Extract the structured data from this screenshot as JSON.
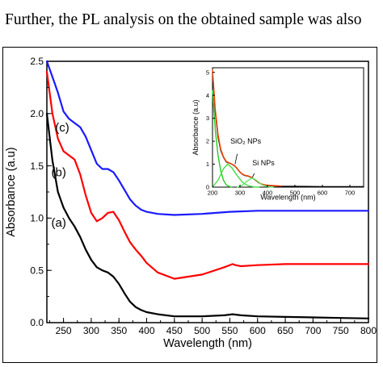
{
  "header": {
    "caption": "Further, the PL analysis on the obtained sample was also"
  },
  "chart_data": [
    {
      "type": "line",
      "xlabel": "Wavelength (nm)",
      "ylabel": "Absorbance (a.u)",
      "xlim": [
        220,
        800
      ],
      "ylim": [
        0.0,
        2.5
      ],
      "xticks": [
        250,
        300,
        350,
        400,
        450,
        500,
        550,
        600,
        650,
        700,
        750,
        800
      ],
      "yticks": [
        0.0,
        0.5,
        1.0,
        1.5,
        2.0,
        2.5
      ],
      "ytick_labels": [
        "0.0",
        "0.5",
        "1.0",
        "1.5",
        "2.0",
        "2.5"
      ],
      "grid": false,
      "series": [
        {
          "name": "(a)",
          "color": "#000000",
          "x": [
            220,
            230,
            240,
            250,
            260,
            270,
            280,
            290,
            300,
            310,
            320,
            330,
            340,
            350,
            360,
            370,
            380,
            390,
            400,
            420,
            450,
            500,
            540,
            555,
            570,
            600,
            650,
            700,
            750,
            800
          ],
          "y": [
            2.0,
            1.55,
            1.25,
            1.1,
            1.0,
            0.92,
            0.82,
            0.7,
            0.6,
            0.53,
            0.5,
            0.48,
            0.44,
            0.37,
            0.28,
            0.2,
            0.15,
            0.12,
            0.1,
            0.08,
            0.06,
            0.06,
            0.07,
            0.08,
            0.07,
            0.06,
            0.055,
            0.05,
            0.045,
            0.04
          ]
        },
        {
          "name": "(b)",
          "color": "#ff0000",
          "x": [
            220,
            230,
            240,
            250,
            260,
            270,
            280,
            290,
            300,
            310,
            320,
            330,
            340,
            350,
            360,
            370,
            380,
            390,
            400,
            420,
            450,
            500,
            540,
            555,
            560,
            570,
            600,
            650,
            700,
            750,
            800
          ],
          "y": [
            2.4,
            2.0,
            1.76,
            1.64,
            1.6,
            1.56,
            1.42,
            1.22,
            1.05,
            0.97,
            1.0,
            1.05,
            1.06,
            0.98,
            0.87,
            0.77,
            0.7,
            0.64,
            0.57,
            0.48,
            0.42,
            0.46,
            0.53,
            0.56,
            0.55,
            0.54,
            0.55,
            0.56,
            0.56,
            0.56,
            0.56
          ]
        },
        {
          "name": "(c)",
          "color": "#1a1aff",
          "x": [
            220,
            230,
            240,
            250,
            260,
            270,
            280,
            290,
            300,
            310,
            320,
            330,
            340,
            350,
            360,
            370,
            380,
            390,
            400,
            420,
            450,
            500,
            550,
            600,
            650,
            700,
            750,
            800
          ],
          "y": [
            2.5,
            2.35,
            2.2,
            2.02,
            1.95,
            1.91,
            1.87,
            1.78,
            1.65,
            1.52,
            1.47,
            1.47,
            1.44,
            1.36,
            1.27,
            1.18,
            1.12,
            1.08,
            1.06,
            1.04,
            1.03,
            1.04,
            1.06,
            1.07,
            1.07,
            1.07,
            1.07,
            1.07
          ]
        }
      ],
      "labels": {
        "a": "(a)",
        "b": "(b)",
        "c": "(c)"
      }
    },
    {
      "type": "line",
      "xlabel": "Wavelength (nm)",
      "ylabel": "Absorbance (a.u)",
      "xlim": [
        200,
        750
      ],
      "ylim": [
        0,
        5.2
      ],
      "xticks": [
        200,
        300,
        400,
        500,
        600,
        700
      ],
      "yticks": [
        0,
        1,
        2,
        3,
        4,
        5
      ],
      "grid": false,
      "annotations": {
        "sio2": "SiO₂ NPs",
        "si": "Si NPs"
      },
      "series": [
        {
          "color": "#000000",
          "x": [
            200,
            210,
            220,
            230,
            240,
            250,
            260,
            270,
            280,
            290,
            300,
            310,
            320,
            330,
            340,
            350,
            360,
            370,
            380,
            400,
            450,
            500,
            600,
            750
          ],
          "y": [
            5.0,
            3.3,
            2.2,
            1.6,
            1.3,
            1.1,
            1.05,
            1.0,
            0.93,
            0.8,
            0.65,
            0.55,
            0.5,
            0.48,
            0.43,
            0.36,
            0.27,
            0.18,
            0.12,
            0.07,
            0.04,
            0.03,
            0.02,
            0.02
          ]
        },
        {
          "color": "#ff4400",
          "x": [
            200,
            210,
            220,
            230,
            240,
            250,
            260,
            270,
            280,
            290,
            300,
            310,
            320,
            330,
            340,
            350,
            360,
            370,
            380,
            400,
            450
          ],
          "y": [
            5.1,
            3.4,
            2.3,
            1.65,
            1.32,
            1.12,
            1.06,
            1.01,
            0.94,
            0.81,
            0.66,
            0.56,
            0.51,
            0.49,
            0.44,
            0.37,
            0.28,
            0.19,
            0.13,
            0.08,
            0.05
          ]
        },
        {
          "color": "#22cc22",
          "x": [
            200,
            210,
            220,
            230,
            240,
            250,
            260,
            270
          ],
          "y": [
            4.2,
            2.5,
            1.4,
            0.7,
            0.3,
            0.1,
            0.03,
            0.0
          ]
        },
        {
          "color": "#44dd44",
          "x": [
            200,
            220,
            240,
            255,
            270,
            290,
            310,
            330,
            350,
            370
          ],
          "y": [
            0.0,
            0.3,
            0.8,
            1.0,
            0.85,
            0.5,
            0.2,
            0.06,
            0.01,
            0.0
          ]
        },
        {
          "color": "#66ee66",
          "x": [
            290,
            310,
            330,
            345,
            360,
            380,
            400,
            420
          ],
          "y": [
            0.0,
            0.1,
            0.3,
            0.4,
            0.3,
            0.1,
            0.02,
            0.0
          ]
        }
      ]
    }
  ]
}
